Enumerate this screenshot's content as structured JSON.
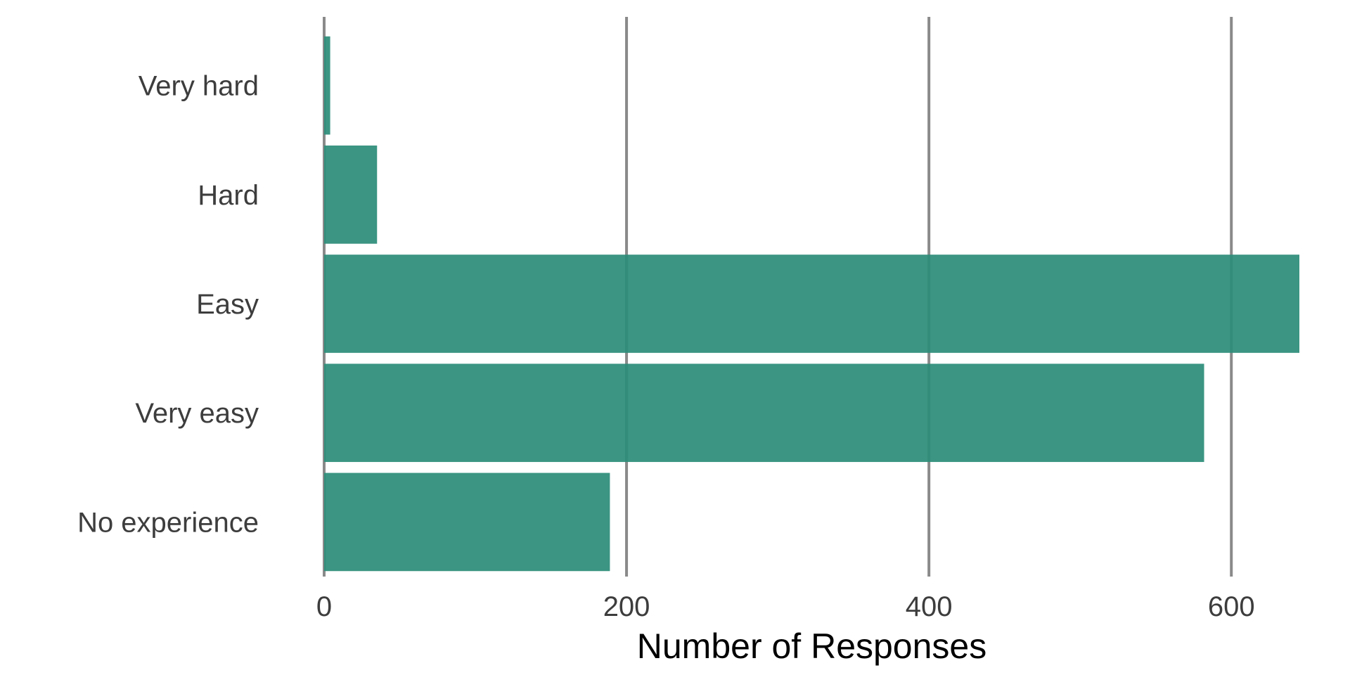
{
  "chart_data": {
    "type": "bar",
    "orientation": "horizontal",
    "categories": [
      "Very hard",
      "Hard",
      "Easy",
      "Very easy",
      "No experience"
    ],
    "values": [
      4,
      35,
      645,
      582,
      189
    ],
    "xlabel": "Number of Responses",
    "ylabel": "",
    "title": "",
    "xlim": [
      0,
      645
    ],
    "xticks": [
      0,
      200,
      400,
      600
    ],
    "xtick_labels": [
      "0",
      "200",
      "400",
      "600"
    ],
    "grid": "vertical major lines",
    "legend": "none",
    "bar_color": "#2a8c77",
    "grid_color": "#8a8a8a"
  }
}
